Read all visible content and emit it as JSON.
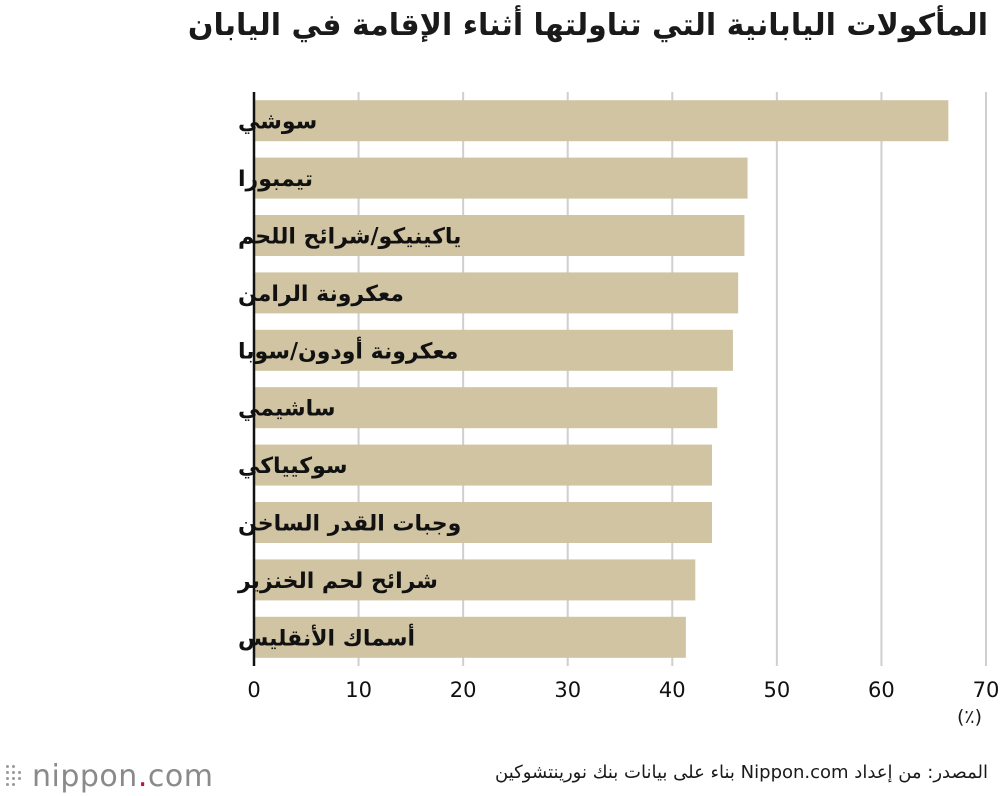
{
  "page": {
    "source": "المصدر: من إعداد Nippon.com بناء على بيانات بنك نورينتشوكين",
    "logo_text": "nippon",
    "logo_dot": ".",
    "logo_suffix": "com"
  },
  "chart_data": {
    "type": "bar",
    "orientation": "horizontal",
    "title": "المأكولات اليابانية التي تناولتها أثناء الإقامة في اليابان",
    "unit_label": "(٪)",
    "categories": [
      "سوشي",
      "تيمبورا",
      "ياكينيكو/شرائح اللحم",
      "معكرونة الرامن",
      "معكرونة أودون/سوبا",
      "ساشيمي",
      "سوكيياكي",
      "وجبات القدر الساخن",
      "شرائح لحم الخنزير",
      "أسماك الأنقليس"
    ],
    "values": [
      66.4,
      47.2,
      46.9,
      46.3,
      45.8,
      44.3,
      43.8,
      43.8,
      42.2,
      41.3
    ],
    "xlim": [
      0,
      70
    ],
    "xticks": [
      "0",
      "10",
      "20",
      "30",
      "40",
      "50",
      "60",
      "70"
    ],
    "grid": true,
    "colors": {
      "bar": "#d0c4a2",
      "grid": "#cfcfcf",
      "axis": "#111111"
    }
  }
}
